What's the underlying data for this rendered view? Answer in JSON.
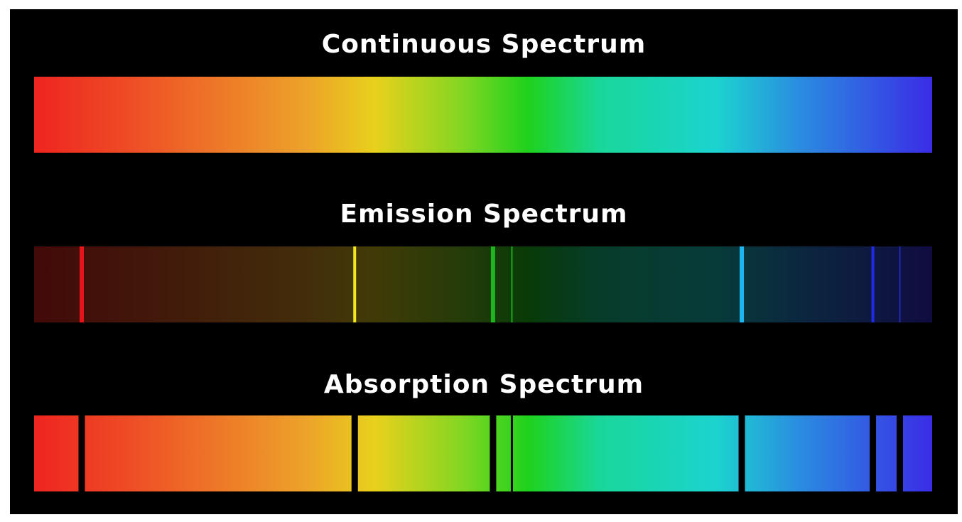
{
  "background_color": "#000000",
  "frame_color": "#ffffff",
  "gradient_colors": [
    {
      "pos": 0.0,
      "color": "#ee2420"
    },
    {
      "pos": 0.1,
      "color": "#ee4a25"
    },
    {
      "pos": 0.3,
      "color": "#eda12a"
    },
    {
      "pos": 0.38,
      "color": "#e8d11c"
    },
    {
      "pos": 0.48,
      "color": "#7fd622"
    },
    {
      "pos": 0.55,
      "color": "#1ed21c"
    },
    {
      "pos": 0.63,
      "color": "#19d79a"
    },
    {
      "pos": 0.76,
      "color": "#1cd3cf"
    },
    {
      "pos": 0.85,
      "color": "#2a8ee0"
    },
    {
      "pos": 1.0,
      "color": "#3a2ce6"
    }
  ],
  "spectra": [
    {
      "id": "continuous",
      "title": "Continuous Spectrum",
      "mode": "continuous",
      "lines": []
    },
    {
      "id": "emission",
      "title": "Emission Spectrum",
      "mode": "emission",
      "lines": [
        {
          "pos": 0.053,
          "color": "#e4141a",
          "weight": 3
        },
        {
          "pos": 0.357,
          "color": "#f2e61c",
          "weight": 2
        },
        {
          "pos": 0.511,
          "color": "#1eb61e",
          "weight": 3
        },
        {
          "pos": 0.532,
          "color": "#1ea81e",
          "weight": 1
        },
        {
          "pos": 0.788,
          "color": "#1eb6ee",
          "weight": 3
        },
        {
          "pos": 0.934,
          "color": "#1e2ae6",
          "weight": 2
        },
        {
          "pos": 0.964,
          "color": "#1e2ab4",
          "weight": 1
        }
      ]
    },
    {
      "id": "absorption",
      "title": "Absorption Spectrum",
      "mode": "absorption",
      "lines": [
        {
          "pos": 0.053,
          "color": "#000000",
          "weight": 3
        },
        {
          "pos": 0.357,
          "color": "#000000",
          "weight": 3
        },
        {
          "pos": 0.511,
          "color": "#000000",
          "weight": 3
        },
        {
          "pos": 0.532,
          "color": "#000000",
          "weight": 1
        },
        {
          "pos": 0.788,
          "color": "#000000",
          "weight": 3
        },
        {
          "pos": 0.934,
          "color": "#000000",
          "weight": 3
        },
        {
          "pos": 0.964,
          "color": "#000000",
          "weight": 3
        }
      ]
    }
  ]
}
